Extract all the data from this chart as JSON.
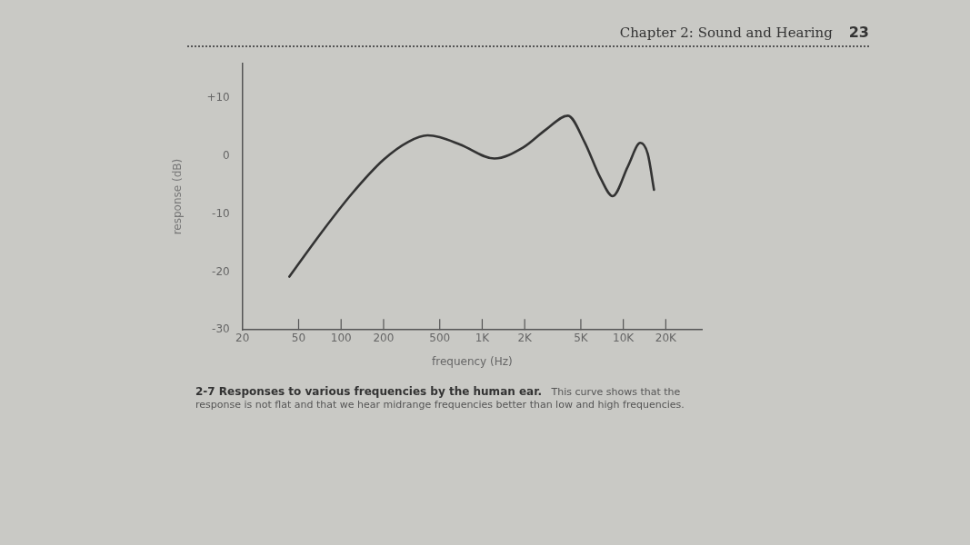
{
  "chart_data": {
    "type": "line",
    "title": "2-7 Responses to various frequencies by the human ear.",
    "subtitle": "This curve shows that the response is not flat and that we hear midrange frequencies better than low and high frequencies.",
    "xlabel": "frequency (Hz)",
    "ylabel": "response (dB)",
    "annotations": [
      "Chapter 2: Sound and Hearing",
      "23"
    ],
    "log": "x",
    "series": [
      {
        "color": "#333333",
        "x": [
          43,
          73,
          120,
          200,
          300,
          410,
          500,
          700,
          1220,
          1950,
          2830,
          4050,
          5300,
          6900,
          8400,
          10800,
          13200,
          14900,
          16500
        ],
        "values": [
          -20.8,
          -13.1,
          -6.4,
          -0.6,
          2.5,
          3.6,
          3.3,
          2.0,
          -0.4,
          1.5,
          4.6,
          7.0,
          2.5,
          -3.8,
          -6.9,
          -1.7,
          2.3,
          0.4,
          -5.8
        ]
      }
    ],
    "xlim": [
      20,
      36000
    ],
    "xticks": [
      20,
      50,
      100,
      200,
      500,
      {
        "value": 1000,
        "label": "1K"
      },
      {
        "value": 2000,
        "label": "2K"
      },
      {
        "value": 5000,
        "label": "5K"
      },
      {
        "value": 10000,
        "label": "10K"
      },
      {
        "value": 20000,
        "label": "20K"
      }
    ],
    "ylim": [
      -30,
      16
    ],
    "yticks": [
      -30,
      -20,
      -10,
      0,
      {
        "value": 10,
        "label": "+10"
      }
    ],
    "grid": false,
    "legend": false,
    "marker": "none",
    "line_style": "solid"
  }
}
